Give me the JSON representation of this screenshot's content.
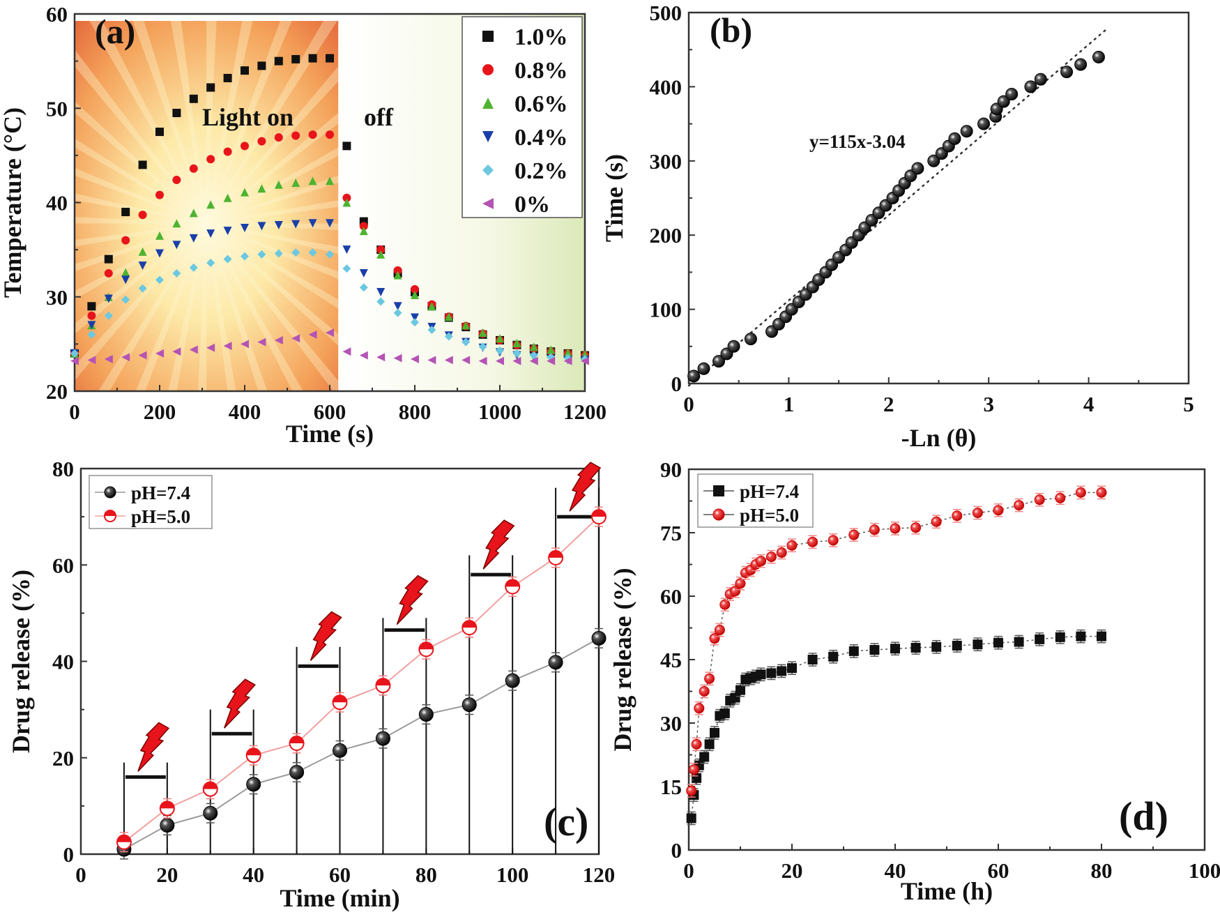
{
  "chart_data": [
    {
      "panel_label": "(a)",
      "type": "scatter",
      "xlabel": "Time (s)",
      "ylabel": "Temperature (°C)",
      "xlim": [
        0,
        1200
      ],
      "ylim": [
        20,
        60
      ],
      "xticks": [
        0,
        200,
        400,
        600,
        800,
        1000,
        1200
      ],
      "yticks": [
        20,
        30,
        40,
        50,
        60
      ],
      "annotations": [
        "Light on",
        "off"
      ],
      "light_on_until": 620,
      "legend_position": "top-right",
      "x": [
        0,
        40,
        80,
        120,
        160,
        200,
        240,
        280,
        320,
        360,
        400,
        440,
        480,
        520,
        560,
        600,
        640,
        680,
        720,
        760,
        800,
        840,
        880,
        920,
        960,
        1000,
        1040,
        1080,
        1120,
        1160,
        1200
      ],
      "series": [
        {
          "name": "1.0%",
          "color": "#111111",
          "marker": "square",
          "values": [
            24,
            29,
            34,
            39,
            44,
            47.5,
            49.5,
            51,
            52.2,
            53.2,
            54,
            54.5,
            55,
            55.2,
            55.3,
            55.3,
            46,
            38,
            35,
            32.5,
            30.5,
            29,
            27.8,
            26.8,
            26,
            25.4,
            24.9,
            24.5,
            24.2,
            24,
            23.8
          ]
        },
        {
          "name": "0.8%",
          "color": "#e8141b",
          "marker": "circle",
          "values": [
            24,
            28,
            32.5,
            36,
            38.7,
            40.8,
            42.4,
            43.6,
            44.6,
            45.4,
            46,
            46.5,
            46.9,
            47.1,
            47.2,
            47.2,
            40.5,
            37.5,
            35,
            32.8,
            30.8,
            29.2,
            27.9,
            26.9,
            26.1,
            25.4,
            24.9,
            24.5,
            24.2,
            24,
            23.8
          ]
        },
        {
          "name": "0.6%",
          "color": "#4db330",
          "marker": "triangle-up",
          "values": [
            24,
            27,
            30,
            32.6,
            34.8,
            36.5,
            37.8,
            38.9,
            39.8,
            40.5,
            41.1,
            41.5,
            41.9,
            42.1,
            42.3,
            42.3,
            40,
            37,
            34.5,
            32.3,
            30.2,
            29,
            27.9,
            27,
            26.2,
            25.6,
            25.1,
            24.7,
            24.4,
            24.1,
            23.9
          ]
        },
        {
          "name": "0.4%",
          "color": "#1a3fa8",
          "marker": "triangle-down",
          "values": [
            24,
            27,
            29.8,
            31.8,
            33.3,
            34.6,
            35.5,
            36.2,
            36.7,
            37,
            37.3,
            37.5,
            37.6,
            37.7,
            37.8,
            37.8,
            35,
            32.5,
            30.5,
            29,
            27.8,
            26.8,
            25.9,
            25.2,
            24.6,
            24.1,
            23.8,
            23.6,
            23.4,
            23.3,
            23.3
          ]
        },
        {
          "name": "0.2%",
          "color": "#6cc8e0",
          "marker": "diamond",
          "values": [
            24,
            26,
            28,
            29.7,
            30.9,
            31.8,
            32.5,
            33.1,
            33.6,
            34,
            34.3,
            34.5,
            34.6,
            34.7,
            34.7,
            34.5,
            33,
            31,
            29.5,
            28.3,
            27.3,
            26.5,
            25.8,
            25.2,
            24.7,
            24.3,
            24,
            23.8,
            23.6,
            23.5,
            23.4
          ]
        },
        {
          "name": "0%",
          "color": "#b454b4",
          "marker": "triangle-left",
          "values": [
            23.2,
            23.3,
            23.4,
            23.6,
            23.8,
            24,
            24.2,
            24.4,
            24.6,
            24.8,
            25,
            25.2,
            25.4,
            25.6,
            26,
            26.2,
            24.2,
            23.8,
            23.6,
            23.5,
            23.4,
            23.3,
            23.3,
            23.3,
            23.2,
            23.2,
            23.2,
            23.2,
            23.2,
            23.2,
            23.2
          ]
        }
      ]
    },
    {
      "panel_label": "(b)",
      "type": "scatter",
      "xlabel": "-Ln (θ)",
      "ylabel": "Time (s)",
      "xlim": [
        0,
        5
      ],
      "ylim": [
        0,
        500
      ],
      "xticks": [
        0,
        1,
        2,
        3,
        4,
        5
      ],
      "yticks": [
        0,
        100,
        200,
        300,
        400,
        500
      ],
      "fit_equation": "y=115x-3.04",
      "fit": {
        "slope": 115,
        "intercept": -3.04,
        "x_range": [
          0,
          4.2
        ]
      },
      "series": [
        {
          "color": "#111111",
          "marker": "sphere",
          "x": [
            0.05,
            0.15,
            0.3,
            0.38,
            0.45,
            0.62,
            0.83,
            0.9,
            0.97,
            1.03,
            1.1,
            1.17,
            1.24,
            1.3,
            1.37,
            1.43,
            1.5,
            1.57,
            1.63,
            1.7,
            1.76,
            1.83,
            1.9,
            1.97,
            2.04,
            2.1,
            2.16,
            2.22,
            2.29,
            2.45,
            2.53,
            2.6,
            2.66,
            2.78,
            2.95,
            3.07,
            3.08,
            3.15,
            3.23,
            3.42,
            3.52,
            3.78,
            3.92,
            4.1
          ],
          "values": [
            10,
            20,
            30,
            40,
            50,
            60,
            70,
            80,
            90,
            100,
            110,
            120,
            130,
            140,
            150,
            160,
            170,
            180,
            190,
            200,
            210,
            220,
            230,
            240,
            250,
            260,
            270,
            280,
            290,
            300,
            310,
            320,
            330,
            340,
            350,
            360,
            370,
            380,
            390,
            400,
            410,
            420,
            430,
            440
          ]
        }
      ]
    },
    {
      "panel_label": "(c)",
      "type": "line",
      "xlabel": "Time (min)",
      "ylabel": "Drug release (%)",
      "xlim": [
        0,
        120
      ],
      "ylim": [
        0,
        80
      ],
      "xticks": [
        0,
        20,
        40,
        60,
        80,
        100,
        120
      ],
      "yticks": [
        0,
        20,
        40,
        60,
        80
      ],
      "legend_position": "top-left",
      "x": [
        10,
        20,
        30,
        40,
        50,
        60,
        70,
        80,
        90,
        100,
        110,
        120
      ],
      "series": [
        {
          "name": "pH=7.4",
          "color": "#111111",
          "line_color": "#9a9a9a",
          "marker": "sphere",
          "values": [
            1,
            6,
            8.5,
            14.5,
            17,
            21.5,
            24,
            29,
            31,
            36,
            39.8,
            44.8
          ],
          "error": 2
        },
        {
          "name": "pH=5.0",
          "color": "#e8141b",
          "line_color": "#f2a0a0",
          "marker": "half-circle",
          "values": [
            2.5,
            9.5,
            13.5,
            20.5,
            23,
            31.5,
            35,
            42.5,
            47,
            55.5,
            61.5,
            70
          ],
          "error": 2
        }
      ],
      "light_on_intervals": [
        {
          "start": 10,
          "end": 20,
          "level": 16,
          "top": 19
        },
        {
          "start": 30,
          "end": 40,
          "level": 25,
          "top": 30
        },
        {
          "start": 50,
          "end": 60,
          "level": 39,
          "top": 43
        },
        {
          "start": 70,
          "end": 80,
          "level": 46.5,
          "top": 49
        },
        {
          "start": 90,
          "end": 100,
          "level": 58,
          "top": 62
        },
        {
          "start": 110,
          "end": 120,
          "level": 70,
          "top": 76
        }
      ]
    },
    {
      "panel_label": "(d)",
      "type": "line",
      "xlabel": "Time (h)",
      "ylabel": "Drug release (%)",
      "xlim": [
        0,
        100
      ],
      "ylim": [
        0,
        90
      ],
      "xticks": [
        0,
        20,
        40,
        60,
        80,
        100
      ],
      "yticks": [
        0,
        15,
        30,
        45,
        60,
        75,
        90
      ],
      "legend_position": "top-left",
      "x": [
        0.5,
        1,
        1.5,
        2,
        3,
        4,
        5,
        6,
        7,
        8,
        9,
        10,
        11,
        12,
        13,
        14,
        16,
        18,
        20,
        24,
        28,
        32,
        36,
        40,
        44,
        48,
        52,
        56,
        60,
        64,
        68,
        72,
        76,
        80
      ],
      "series": [
        {
          "name": "pH=7.4",
          "color": "#111111",
          "line_color": "#555555",
          "marker": "square",
          "values": [
            7.5,
            13,
            17,
            20,
            22,
            25,
            27.7,
            31.7,
            32.3,
            35.3,
            36,
            37.8,
            40.3,
            40.6,
            41,
            41.5,
            41.8,
            42.3,
            43,
            45,
            45.7,
            47,
            47.3,
            47.6,
            47.8,
            48,
            48.3,
            48.6,
            49,
            49.2,
            49.8,
            50.3,
            50.5,
            50.5
          ],
          "error": 1.5
        },
        {
          "name": "pH=5.0",
          "color": "#e8141b",
          "line_color": "#555555",
          "marker": "sphere-red",
          "values": [
            14,
            19,
            25,
            33.5,
            37.5,
            40.5,
            50,
            52,
            58,
            60.5,
            61.2,
            63,
            65.5,
            66.2,
            67.5,
            68.3,
            69.3,
            70.3,
            72,
            72.8,
            73.2,
            74.5,
            75.7,
            76,
            76.2,
            77.6,
            79,
            79.7,
            80.3,
            81.5,
            82.8,
            83.2,
            84.5,
            84.5
          ],
          "error": 1.5
        }
      ]
    }
  ]
}
